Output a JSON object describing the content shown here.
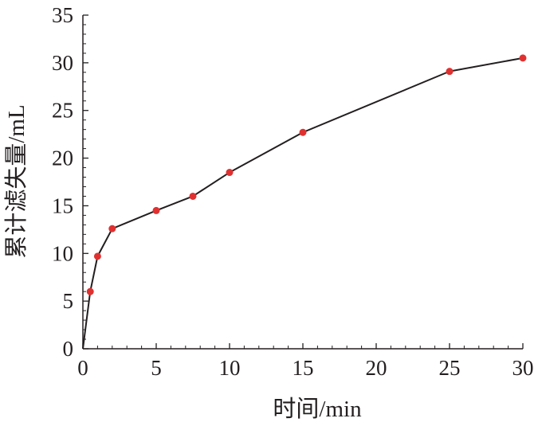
{
  "chart_data": {
    "type": "line",
    "xlabel": "时间/min",
    "ylabel": "累计滤失量/mL",
    "xlim": [
      0,
      30
    ],
    "ylim": [
      0,
      35
    ],
    "xticks": [
      0,
      5,
      10,
      15,
      20,
      25,
      30
    ],
    "yticks": [
      0,
      5,
      10,
      15,
      20,
      25,
      30,
      35
    ],
    "grid": false,
    "series": [
      {
        "line_color": "#231f20",
        "marker_color": "#e03131",
        "points": [
          {
            "x": 0,
            "y": 0,
            "marker": false
          },
          {
            "x": 0.5,
            "y": 6.0,
            "marker": true
          },
          {
            "x": 1,
            "y": 9.7,
            "marker": true
          },
          {
            "x": 2,
            "y": 12.6,
            "marker": true
          },
          {
            "x": 5,
            "y": 14.5,
            "marker": true
          },
          {
            "x": 7.5,
            "y": 16.0,
            "marker": true
          },
          {
            "x": 10,
            "y": 18.5,
            "marker": true
          },
          {
            "x": 15,
            "y": 22.7,
            "marker": true
          },
          {
            "x": 25,
            "y": 29.1,
            "marker": true
          },
          {
            "x": 30,
            "y": 30.5,
            "marker": true
          }
        ]
      }
    ]
  }
}
